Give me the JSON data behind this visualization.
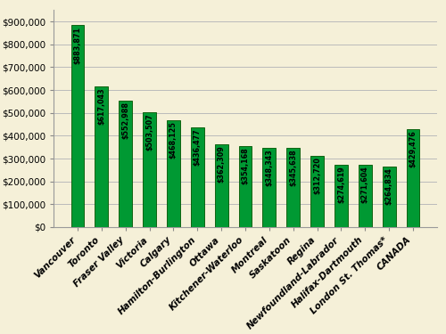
{
  "categories": [
    "Vancouver",
    "Toronto",
    "Fraser Valley",
    "Victoria",
    "Calgary",
    "Hamilton-Burlington",
    "Ottawa",
    "Kitchener-Waterloo",
    "Montreal",
    "Saskatoon",
    "Regina",
    "Newfoundland-Labrador",
    "Halifax-Dartmouth",
    "London St. Thomas*",
    "CANADA"
  ],
  "values": [
    883871,
    617043,
    552988,
    503507,
    468125,
    436477,
    362309,
    354168,
    348343,
    345638,
    312720,
    274619,
    271604,
    264834,
    429476
  ],
  "bar_color": "#009933",
  "bar_edge_color": "#005500",
  "background_color": "#F5F0D8",
  "grid_color": "#BBBBBB",
  "ylim": [
    0,
    950000
  ],
  "ytick_step": 100000,
  "label_fontsize": 5.8,
  "tick_fontsize": 7.5,
  "bar_width": 0.55
}
